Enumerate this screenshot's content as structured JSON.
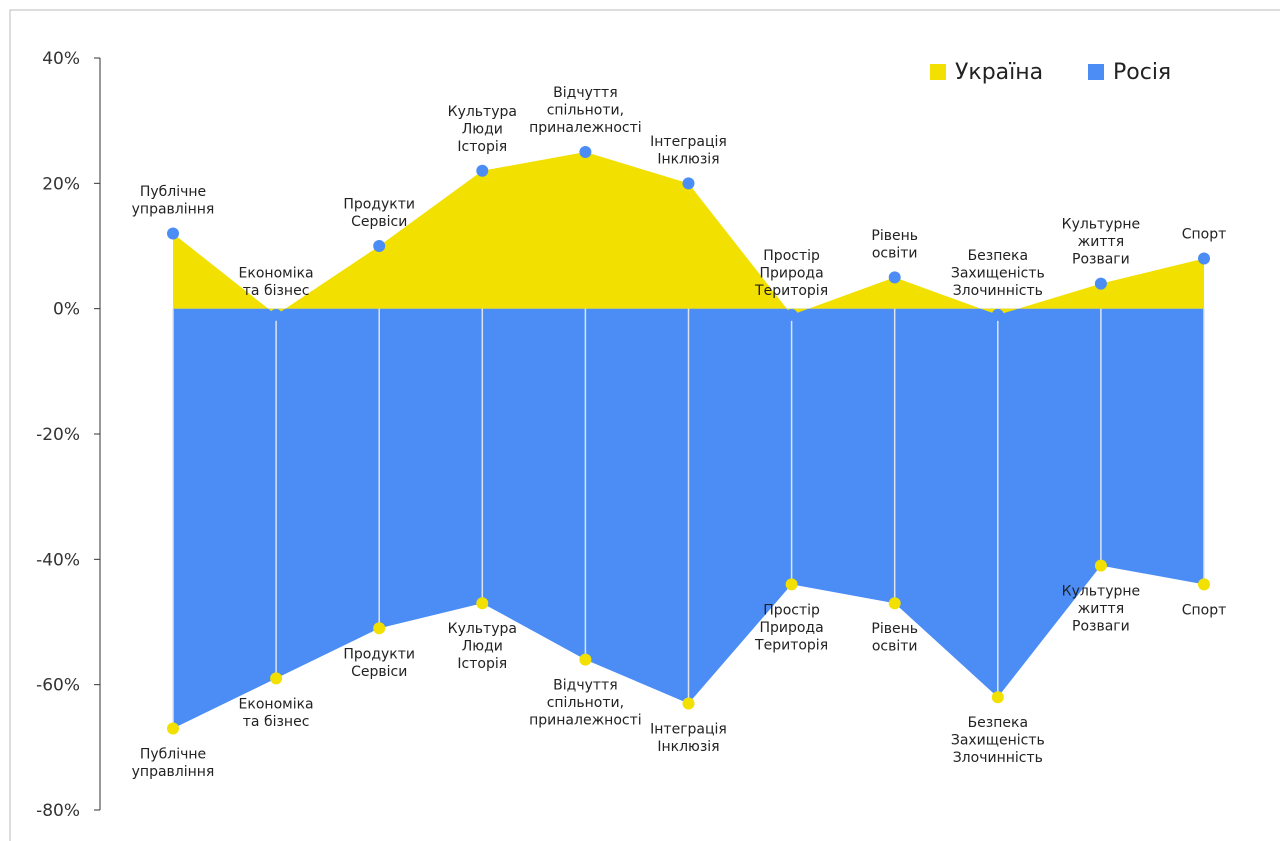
{
  "chart_data": {
    "type": "area",
    "categories": [
      "Публічне\nуправління",
      "Економіка\nта бізнес",
      "Продукти\nСервіси",
      "Культура\nЛюди\nІсторія",
      "Відчуття\nспільноти,\nприналежності",
      "Інтеграція\nІнклюзія",
      "Простір\nПрирода\nТериторія",
      "Рівень\nосвіти",
      "Безпека\nЗахищеність\nЗлочинність",
      "Культурне\nжиття\nРозваги",
      "Спорт"
    ],
    "series": [
      {
        "name": "Україна",
        "color": "#f2e000",
        "values": [
          12,
          -1,
          10,
          22,
          25,
          20,
          -1,
          5,
          -1,
          4,
          8
        ]
      },
      {
        "name": "Росія",
        "color": "#4b8df5",
        "values": [
          -67,
          -59,
          -51,
          -47,
          -56,
          -63,
          -44,
          -47,
          -62,
          -41,
          -44
        ]
      }
    ],
    "ylim": [
      -80,
      40
    ],
    "yticks": [
      {
        "value": 40,
        "label": "40%"
      },
      {
        "value": 20,
        "label": "20%"
      },
      {
        "value": 0,
        "label": "0%"
      },
      {
        "value": -20,
        "label": "-20%"
      },
      {
        "value": -40,
        "label": "-40%"
      },
      {
        "value": -60,
        "label": "-60%"
      },
      {
        "value": -80,
        "label": "-80%"
      }
    ],
    "legend": "top-right"
  }
}
